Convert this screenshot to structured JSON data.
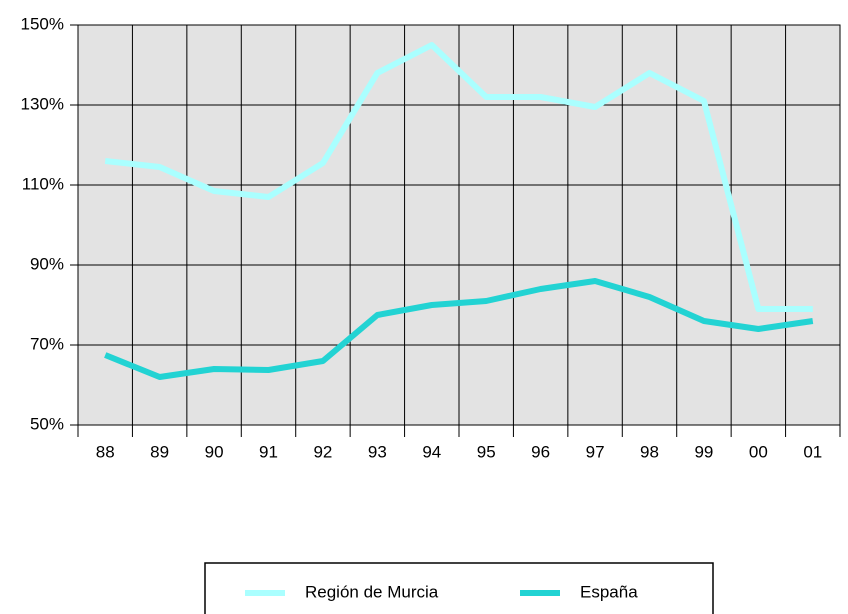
{
  "chart_data": {
    "type": "line",
    "categories": [
      "88",
      "89",
      "90",
      "91",
      "92",
      "93",
      "94",
      "95",
      "96",
      "97",
      "98",
      "99",
      "00",
      "01"
    ],
    "series": [
      {
        "name": "Región de Murcia",
        "color": "#aaffff",
        "values": [
          116,
          114.5,
          108.5,
          107,
          115.5,
          138,
          145,
          132,
          132,
          129.5,
          138,
          131,
          79,
          79
        ]
      },
      {
        "name": "España",
        "color": "#22d3d3",
        "values": [
          67.5,
          62,
          64,
          63.75,
          66,
          77.5,
          80,
          81,
          84,
          86,
          82,
          76,
          74,
          76
        ]
      }
    ],
    "ylim": [
      50,
      150
    ],
    "yticks": [
      {
        "value": 50,
        "label": "50%"
      },
      {
        "value": 70,
        "label": "70%"
      },
      {
        "value": 90,
        "label": "90%"
      },
      {
        "value": 110,
        "label": "110%"
      },
      {
        "value": 130,
        "label": "130%"
      },
      {
        "value": 150,
        "label": "150%"
      }
    ],
    "grid": true,
    "legend": "bottom",
    "background": "#e3e3e3"
  }
}
